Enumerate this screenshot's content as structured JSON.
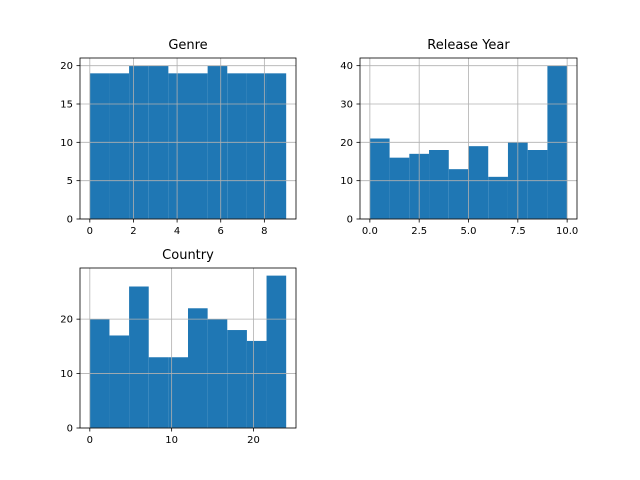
{
  "chart_data": [
    {
      "type": "bar",
      "title": "Genre",
      "xlim": [
        -0.45,
        9.45
      ],
      "ylim": [
        0,
        21
      ],
      "xticks": [
        0,
        2,
        4,
        6,
        8
      ],
      "xtick_labels": [
        "0",
        "2",
        "4",
        "6",
        "8"
      ],
      "yticks": [
        0,
        5,
        10,
        15,
        20
      ],
      "ytick_labels": [
        "0",
        "5",
        "10",
        "15",
        "20"
      ],
      "bin_edges": [
        0,
        0.9,
        1.8,
        2.7,
        3.6,
        4.5,
        5.4,
        6.3,
        7.2,
        8.1,
        9.0
      ],
      "values": [
        19,
        19,
        20,
        20,
        19,
        19,
        20,
        19,
        19,
        19
      ],
      "grid": true,
      "color": "#1f77b4"
    },
    {
      "type": "bar",
      "title": "Release Year",
      "xlim": [
        -0.5,
        10.5
      ],
      "ylim": [
        0,
        42
      ],
      "xticks": [
        0,
        2.5,
        5,
        7.5,
        10
      ],
      "xtick_labels": [
        "0.0",
        "2.5",
        "5.0",
        "7.5",
        "10.0"
      ],
      "yticks": [
        0,
        10,
        20,
        30,
        40
      ],
      "ytick_labels": [
        "0",
        "10",
        "20",
        "30",
        "40"
      ],
      "bin_edges": [
        0,
        1,
        2,
        3,
        4,
        5,
        6,
        7,
        8,
        9,
        10
      ],
      "values": [
        21,
        16,
        17,
        18,
        13,
        19,
        11,
        20,
        18,
        40
      ],
      "grid": true,
      "color": "#1f77b4"
    },
    {
      "type": "bar",
      "title": "Country",
      "xlim": [
        -1.2,
        25.2
      ],
      "ylim": [
        0,
        29.4
      ],
      "xticks": [
        0,
        10,
        20
      ],
      "xtick_labels": [
        "0",
        "10",
        "20"
      ],
      "yticks": [
        0,
        10,
        20
      ],
      "ytick_labels": [
        "0",
        "10",
        "20"
      ],
      "bin_edges": [
        0,
        2.4,
        4.8,
        7.2,
        9.6,
        12.0,
        14.4,
        16.8,
        19.2,
        21.6,
        24.0
      ],
      "values": [
        20,
        17,
        26,
        13,
        13,
        22,
        20,
        18,
        16,
        28
      ],
      "grid": true,
      "color": "#1f77b4"
    }
  ]
}
